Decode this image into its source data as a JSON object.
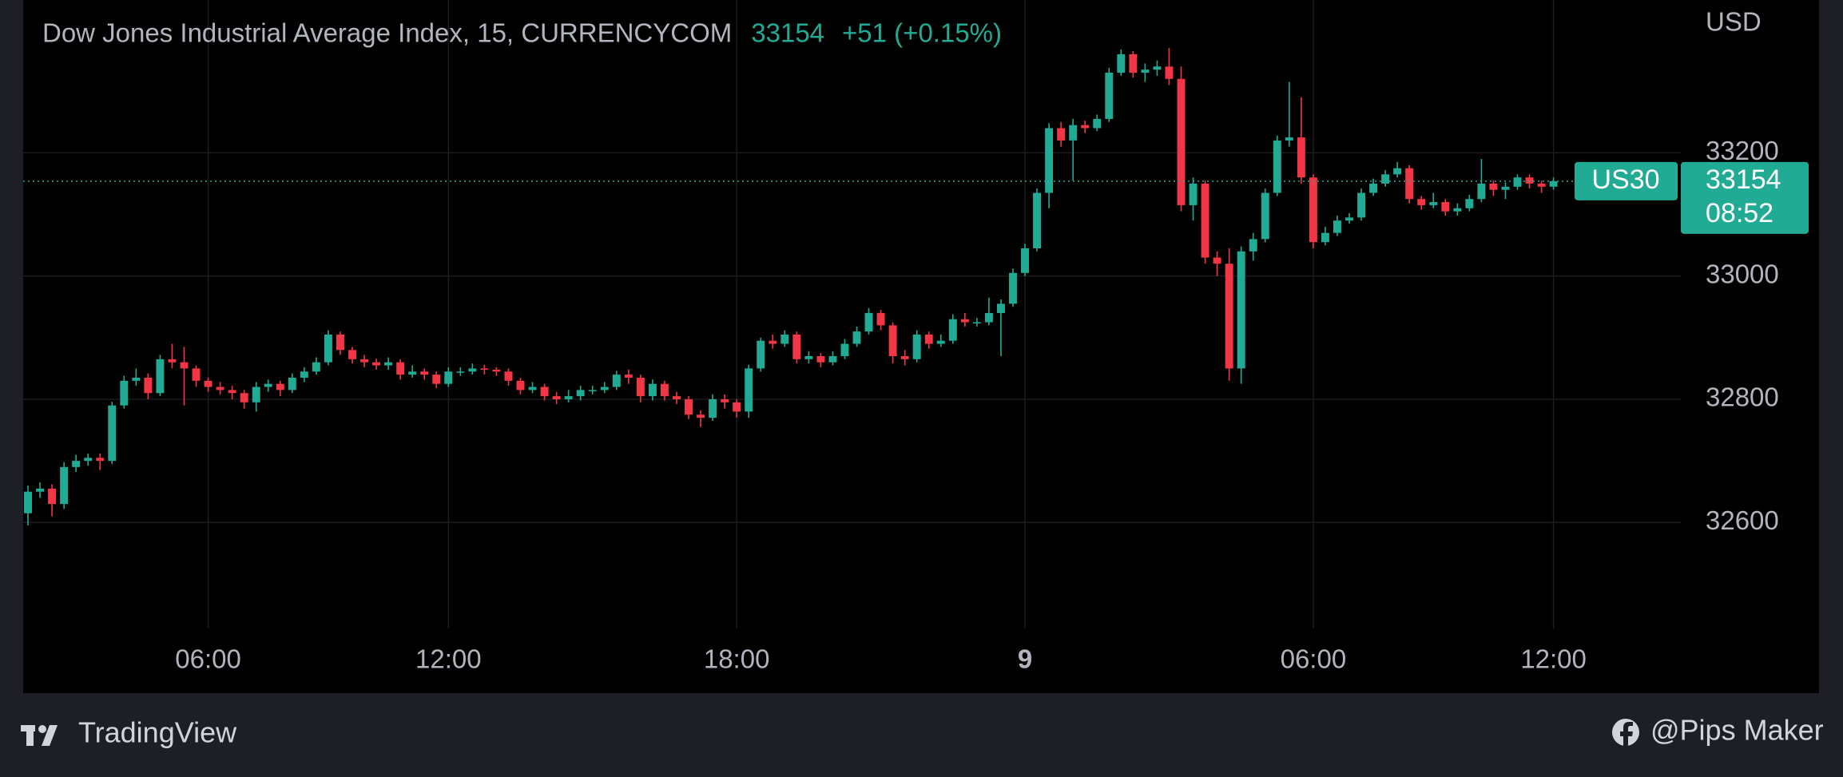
{
  "chart_data": {
    "type": "candlestick",
    "title": "Dow Jones Industrial Average Index, 15, CURRENCYCOM",
    "last_price": 33154,
    "change": "+51 (+0.15%)",
    "symbol": "US30",
    "countdown": "08:52",
    "currency": "USD",
    "up_color": "#22ab94",
    "down_color": "#f23645",
    "grid": true,
    "xlim": [
      -0.4,
      137.6
    ],
    "xticks": [
      {
        "value": 15,
        "label": "06:00"
      },
      {
        "value": 35,
        "label": "12:00"
      },
      {
        "value": 59,
        "label": "18:00"
      },
      {
        "value": 83,
        "label": "9"
      },
      {
        "value": 107,
        "label": "06:00"
      },
      {
        "value": 127,
        "label": "12:00"
      }
    ],
    "ylim": [
      32428,
      33448
    ],
    "yticks": [
      32600,
      32800,
      33000,
      33200
    ],
    "open": [
      32615,
      32650,
      32655,
      32630,
      32690,
      32700,
      32705,
      32700,
      32790,
      32830,
      32835,
      32810,
      32865,
      32860,
      32850,
      32830,
      32820,
      32815,
      32810,
      32795,
      32820,
      32825,
      32815,
      32835,
      32845,
      32860,
      32905,
      32880,
      32865,
      32860,
      32855,
      32860,
      32840,
      32845,
      32840,
      32825,
      32845,
      32845,
      32850,
      32848,
      32845,
      32830,
      32815,
      32820,
      32805,
      32800,
      32805,
      32815,
      32815,
      32820,
      32840,
      32835,
      32805,
      32825,
      32805,
      32800,
      32775,
      32770,
      32800,
      32795,
      32780,
      32850,
      32895,
      32890,
      32905,
      32865,
      32870,
      32860,
      32870,
      32890,
      32910,
      32940,
      32920,
      32870,
      32865,
      32905,
      32890,
      32895,
      32930,
      32925,
      32925,
      32940,
      32955,
      33005,
      33045,
      33135,
      33240,
      33220,
      33245,
      33240,
      33255,
      33330,
      33360,
      33330,
      33335,
      33340,
      33320,
      33115,
      33150,
      33030,
      33020,
      32850,
      33040,
      33060,
      33135,
      33220,
      33225,
      33160,
      33055,
      33070,
      33090,
      33095,
      33135,
      33150,
      33165,
      33175,
      33125,
      33115,
      33120,
      33105,
      33110,
      33125,
      33150,
      33140,
      33145,
      33160,
      33150,
      33145
    ],
    "high": [
      32660,
      32665,
      32662,
      32698,
      32710,
      32712,
      32712,
      32796,
      32838,
      32850,
      32842,
      32872,
      32890,
      32885,
      32855,
      32835,
      32828,
      32822,
      32815,
      32828,
      32832,
      32830,
      32842,
      32852,
      32868,
      32912,
      32910,
      32885,
      32872,
      32866,
      32868,
      32865,
      32855,
      32850,
      32845,
      32852,
      32852,
      32858,
      32856,
      32852,
      32850,
      32835,
      32828,
      32825,
      32812,
      32815,
      32822,
      32822,
      32828,
      32846,
      32848,
      32840,
      32832,
      32830,
      32812,
      32805,
      32782,
      32808,
      32808,
      32800,
      32856,
      32900,
      32905,
      32912,
      32910,
      32878,
      32875,
      32878,
      32898,
      32918,
      32948,
      32945,
      32925,
      32880,
      32912,
      32910,
      32905,
      32938,
      32940,
      32932,
      32965,
      32962,
      33012,
      33052,
      33142,
      33248,
      33250,
      33255,
      33252,
      33262,
      33338,
      33368,
      33365,
      33345,
      33350,
      33370,
      33340,
      33160,
      33155,
      33040,
      33045,
      33048,
      33070,
      33142,
      33228,
      33315,
      33290,
      33165,
      33080,
      33098,
      33102,
      33142,
      33158,
      33172,
      33185,
      33180,
      33130,
      33135,
      33125,
      33118,
      33132,
      33190,
      33155,
      33152,
      33165,
      33165,
      33155,
      33160
    ],
    "low": [
      32595,
      32640,
      32610,
      32622,
      32682,
      32692,
      32685,
      32695,
      32785,
      32822,
      32800,
      32805,
      32850,
      32790,
      32820,
      32812,
      32808,
      32800,
      32785,
      32780,
      32812,
      32805,
      32810,
      32828,
      32840,
      32855,
      32872,
      32858,
      32852,
      32848,
      32848,
      32832,
      32835,
      32832,
      32818,
      32820,
      32838,
      32840,
      32840,
      32838,
      32822,
      32808,
      32810,
      32798,
      32792,
      32795,
      32798,
      32808,
      32810,
      32815,
      32825,
      32795,
      32798,
      32798,
      32792,
      32768,
      32755,
      32765,
      32785,
      32770,
      32770,
      32845,
      32882,
      32885,
      32858,
      32858,
      32852,
      32855,
      32865,
      32885,
      32905,
      32912,
      32858,
      32855,
      32860,
      32882,
      32885,
      32890,
      32918,
      32918,
      32920,
      32870,
      32950,
      33000,
      33040,
      33110,
      33210,
      33155,
      33232,
      33235,
      33250,
      33325,
      33322,
      33315,
      33325,
      33310,
      33105,
      33090,
      33020,
      33000,
      32830,
      32825,
      33025,
      33055,
      33130,
      33210,
      33150,
      33045,
      33050,
      33065,
      33085,
      33090,
      33130,
      33145,
      33160,
      33118,
      33108,
      33110,
      33098,
      33098,
      33105,
      33120,
      33130,
      33125,
      33140,
      33142,
      33135,
      33140
    ],
    "close": [
      32650,
      32655,
      32630,
      32690,
      32700,
      32705,
      32700,
      32790,
      32830,
      32835,
      32810,
      32865,
      32860,
      32850,
      32830,
      32820,
      32815,
      32810,
      32795,
      32820,
      32825,
      32815,
      32835,
      32845,
      32860,
      32905,
      32880,
      32865,
      32860,
      32855,
      32860,
      32840,
      32845,
      32840,
      32825,
      32845,
      32845,
      32850,
      32848,
      32845,
      32830,
      32815,
      32820,
      32805,
      32800,
      32805,
      32815,
      32815,
      32820,
      32840,
      32835,
      32805,
      32825,
      32805,
      32800,
      32775,
      32770,
      32800,
      32795,
      32780,
      32850,
      32895,
      32890,
      32905,
      32865,
      32870,
      32860,
      32870,
      32890,
      32910,
      32940,
      32920,
      32870,
      32865,
      32905,
      32890,
      32895,
      32930,
      32925,
      32925,
      32940,
      32955,
      33005,
      33045,
      33135,
      33240,
      33220,
      33245,
      33240,
      33255,
      33330,
      33360,
      33330,
      33335,
      33340,
      33320,
      33115,
      33150,
      33030,
      33020,
      32850,
      33040,
      33060,
      33135,
      33220,
      33225,
      33160,
      33055,
      33070,
      33090,
      33095,
      33135,
      33150,
      33165,
      33175,
      33125,
      33115,
      33120,
      33105,
      33110,
      33125,
      33150,
      33140,
      33145,
      33160,
      33150,
      33145,
      33154
    ]
  },
  "footer": {
    "brand": "TradingView",
    "credit": "@Pips Maker"
  }
}
